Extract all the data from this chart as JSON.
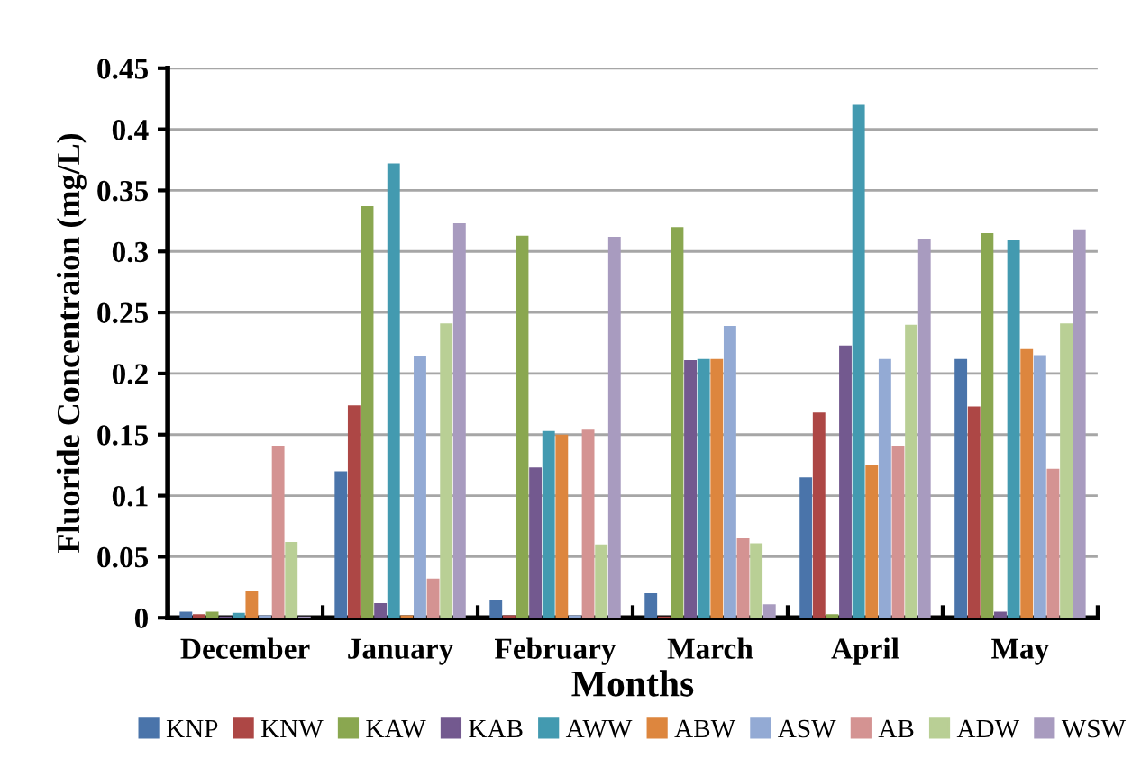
{
  "chart_data": {
    "type": "bar",
    "xlabel": "Months",
    "ylabel": "Fluoride Concentraion (mg/L)",
    "categories": [
      "December",
      "January",
      "February",
      "March",
      "April",
      "May"
    ],
    "series": [
      {
        "name": "KNP",
        "color": "#4a74aa",
        "values": [
          0.005,
          0.12,
          0.015,
          0.02,
          0.115,
          0.212
        ]
      },
      {
        "name": "KNW",
        "color": "#ad4745",
        "values": [
          0.003,
          0.174,
          0.002,
          0.001,
          0.168,
          0.173
        ]
      },
      {
        "name": "KAW",
        "color": "#8aa750",
        "values": [
          0.005,
          0.337,
          0.313,
          0.32,
          0.003,
          0.315
        ]
      },
      {
        "name": "KAB",
        "color": "#73598f",
        "values": [
          0.001,
          0.012,
          0.123,
          0.211,
          0.223,
          0.005
        ]
      },
      {
        "name": "AWW",
        "color": "#439ab0",
        "values": [
          0.004,
          0.372,
          0.153,
          0.212,
          0.42,
          0.309
        ]
      },
      {
        "name": "ABW",
        "color": "#dd863e",
        "values": [
          0.022,
          0.002,
          0.15,
          0.212,
          0.125,
          0.22
        ]
      },
      {
        "name": "ASW",
        "color": "#93aad4",
        "values": [
          0.002,
          0.214,
          0.002,
          0.239,
          0.212,
          0.215
        ]
      },
      {
        "name": "AB",
        "color": "#d49392",
        "values": [
          0.141,
          0.032,
          0.154,
          0.065,
          0.141,
          0.122
        ]
      },
      {
        "name": "ADW",
        "color": "#b9cf95",
        "values": [
          0.062,
          0.241,
          0.06,
          0.061,
          0.24,
          0.241
        ]
      },
      {
        "name": "WSW",
        "color": "#a89bbf",
        "values": [
          0.001,
          0.323,
          0.312,
          0.011,
          0.31,
          0.318
        ]
      }
    ],
    "ylim": [
      0,
      0.45
    ],
    "yticks": [
      0,
      0.05,
      0.1,
      0.15,
      0.2,
      0.25,
      0.3,
      0.35,
      0.4,
      0.45
    ],
    "grid": "y",
    "legend": "bottom"
  }
}
